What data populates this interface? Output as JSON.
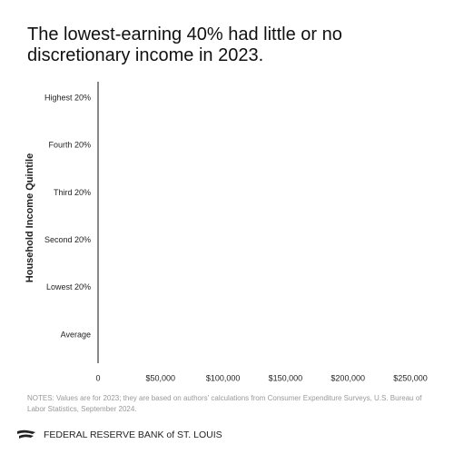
{
  "chart_data": {
    "type": "barh",
    "title": "The lowest-earning 40% had little or no discretionary income in 2023.",
    "y_label": "Household Income Quintile",
    "categories": [
      "Highest 20%",
      "Fourth 20%",
      "Third 20%",
      "Second 20%",
      "Lowest 20%",
      "Average"
    ],
    "xlim": [
      0,
      250000
    ],
    "xticks": [
      0,
      {
        "value": 50000,
        "label": "$50,000"
      },
      {
        "value": 100000,
        "label": "$100,000"
      },
      {
        "value": 150000,
        "label": "$150,000"
      },
      {
        "value": 200000,
        "label": "$200,000"
      },
      {
        "value": 250000,
        "label": "$250,000"
      }
    ]
  },
  "notes": "NOTES: Values are for 2023; they are based on authors' calculations from Consumer Expenditure Surveys, U.S. Bureau of Labor Statistics, September 2024.",
  "footer": "FEDERAL RESERVE BANK of ST. LOUIS"
}
